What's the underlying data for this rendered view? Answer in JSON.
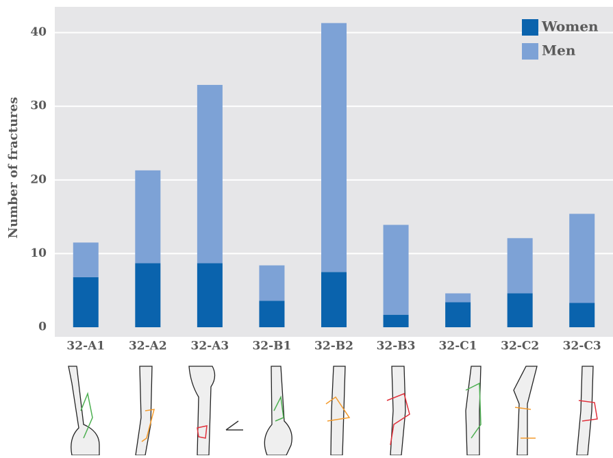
{
  "chart_data": {
    "type": "bar",
    "stacked": true,
    "y_label": "Number of fractures",
    "categories": [
      "32-A1",
      "32-A2",
      "32-A3",
      "32-B1",
      "32-B2",
      "32-B3",
      "32-C1",
      "32-C2",
      "32-C3"
    ],
    "series": [
      {
        "name": "Women",
        "color": "#0a63ad",
        "values": [
          6.8,
          8.7,
          8.7,
          3.6,
          7.5,
          1.7,
          3.4,
          4.6,
          3.3
        ]
      },
      {
        "name": "Men",
        "color": "#7da2d6",
        "values": [
          4.7,
          12.6,
          24.2,
          4.8,
          33.8,
          12.2,
          1.2,
          7.5,
          12.1
        ]
      }
    ],
    "ylim": [
      0,
      43.5
    ],
    "yticks": [
      0,
      10,
      20,
      30,
      40
    ],
    "grid": true,
    "legend": "top-right"
  }
}
